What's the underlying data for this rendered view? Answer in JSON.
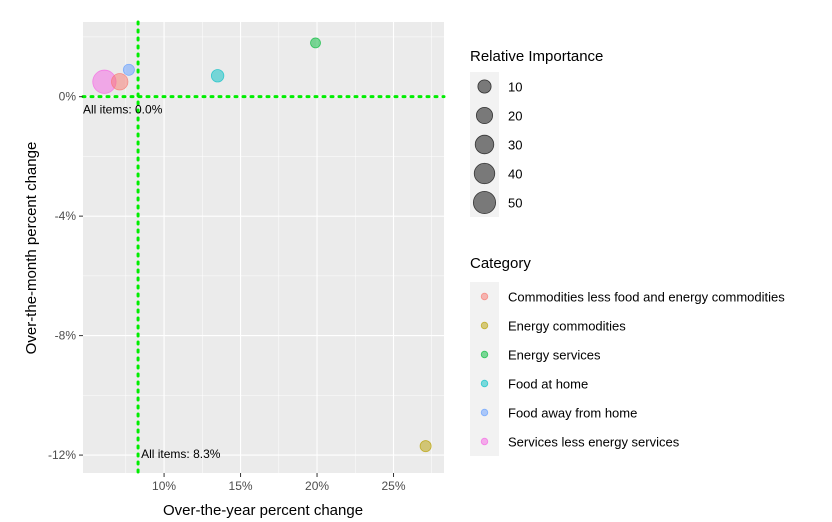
{
  "chart_data": {
    "type": "scatter",
    "title": "",
    "xlabel": "Over-the-year percent change",
    "ylabel": "Over-the-month percent change",
    "xlim": [
      4.7,
      28.3
    ],
    "ylim": [
      -12.6,
      2.5
    ],
    "x_ticks": [
      {
        "value": 10,
        "label": "10%"
      },
      {
        "value": 15,
        "label": "15%"
      },
      {
        "value": 20,
        "label": "20%"
      },
      {
        "value": 25,
        "label": "25%"
      }
    ],
    "y_ticks": [
      {
        "value": 0,
        "label": "0%"
      },
      {
        "value": -4,
        "label": "-4%"
      },
      {
        "value": -8,
        "label": "-8%"
      },
      {
        "value": -12,
        "label": "-12%"
      }
    ],
    "grid": true,
    "reference_lines": {
      "x": {
        "value": 8.3,
        "label": "All items: 8.3%",
        "color": "#00ee00"
      },
      "y": {
        "value": 0.0,
        "label": "All items: 0.0%",
        "color": "#00ee00"
      }
    },
    "series": [
      {
        "name": "Commodities less food and energy commodities",
        "color": "#F8766D",
        "points": [
          {
            "x": 7.1,
            "y": 0.5,
            "size": 21
          }
        ]
      },
      {
        "name": "Energy commodities",
        "color": "#B79F00",
        "points": [
          {
            "x": 27.1,
            "y": -11.7,
            "size": 5
          }
        ]
      },
      {
        "name": "Energy services",
        "color": "#00BA38",
        "points": [
          {
            "x": 19.9,
            "y": 1.8,
            "size": 3
          }
        ]
      },
      {
        "name": "Food at home",
        "color": "#00BFC4",
        "points": [
          {
            "x": 13.5,
            "y": 0.7,
            "size": 8
          }
        ]
      },
      {
        "name": "Food away from home",
        "color": "#619CFF",
        "points": [
          {
            "x": 7.7,
            "y": 0.9,
            "size": 5
          }
        ]
      },
      {
        "name": "Services less energy services",
        "color": "#F564E3",
        "points": [
          {
            "x": 6.1,
            "y": 0.5,
            "size": 57
          }
        ]
      }
    ],
    "size_legend": {
      "title": "Relative Importance",
      "entries": [
        10,
        20,
        30,
        40,
        50
      ]
    },
    "color_legend": {
      "title": "Category"
    },
    "legend_position": "right"
  }
}
